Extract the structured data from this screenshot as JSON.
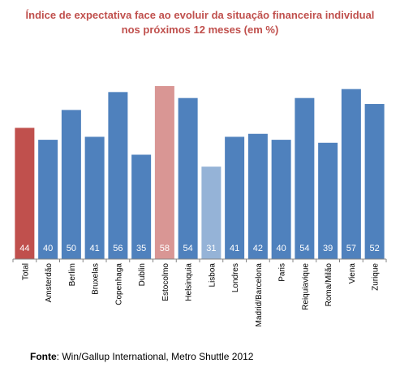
{
  "chart_data": {
    "type": "bar",
    "title_lines": [
      "Índice de expectativa face ao evoluir da situação financeira individual",
      "nos próximos 12 meses (em %)"
    ],
    "categories": [
      "Total",
      "Amsterdão",
      "Berlim",
      "Bruxelas",
      "Copenhaga",
      "Dublin",
      "Estocolmo",
      "Helsinquia",
      "Lisboa",
      "Londres",
      "Madrid/Barcelona",
      "Paris",
      "Reiquiavique",
      "Roma/Milão",
      "Viena",
      "Zurique"
    ],
    "values": [
      44,
      40,
      50,
      41,
      56,
      35,
      58,
      54,
      31,
      41,
      42,
      40,
      54,
      39,
      57,
      52
    ],
    "data_labels": [
      "44",
      "40",
      "50",
      "41",
      "56",
      "35",
      "58",
      "54",
      "31",
      "41",
      "42",
      "40",
      "54",
      "39",
      "57",
      "52"
    ],
    "colors": [
      "#c0504d",
      "#4f81bd",
      "#4f81bd",
      "#4f81bd",
      "#4f81bd",
      "#4f81bd",
      "#d99694",
      "#4f81bd",
      "#95b3d7",
      "#4f81bd",
      "#4f81bd",
      "#4f81bd",
      "#4f81bd",
      "#4f81bd",
      "#4f81bd",
      "#4f81bd"
    ],
    "ylim": [
      0,
      58
    ],
    "grid": false,
    "legend": "none"
  },
  "source": {
    "label": "Fonte",
    "text": ": Win/Gallup International, Metro Shuttle 2012"
  }
}
